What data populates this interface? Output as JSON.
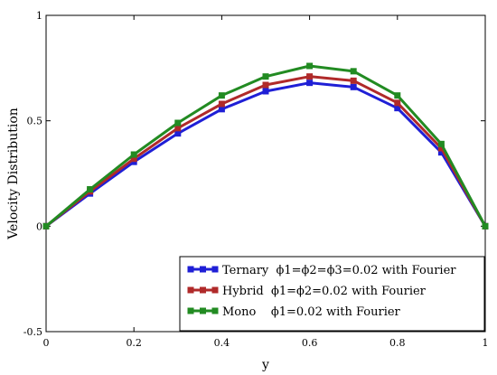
{
  "chart_data": {
    "type": "line",
    "title": "",
    "xlabel": "y",
    "ylabel": "Velocity  Distribution",
    "xlim": [
      0,
      1
    ],
    "ylim": [
      -0.5,
      1
    ],
    "x_ticks": [
      0,
      0.2,
      0.4,
      0.6,
      0.8,
      1
    ],
    "x_tick_labels": [
      "0",
      "0.2",
      "0.4",
      "0.6",
      "0.8",
      "1"
    ],
    "y_ticks": [
      -0.5,
      0,
      0.5,
      1
    ],
    "y_tick_labels": [
      "-0.5",
      "0",
      "0.5",
      "1"
    ],
    "grid": false,
    "legend_position": "bottom-right",
    "x": [
      0,
      0.1,
      0.2,
      0.3,
      0.4,
      0.5,
      0.6,
      0.7,
      0.8,
      0.9,
      1.0
    ],
    "series": [
      {
        "name": "Ternary  ϕ1=ϕ2=ϕ3=0.02 with Fourier",
        "color": "#1f1fd6",
        "marker": "square",
        "values": [
          0,
          0.155,
          0.305,
          0.44,
          0.555,
          0.64,
          0.68,
          0.66,
          0.56,
          0.35,
          0
        ]
      },
      {
        "name": "Hybrid  ϕ1=ϕ2=0.02 with Fourier",
        "color": "#b02a2a",
        "marker": "square",
        "values": [
          0,
          0.165,
          0.32,
          0.465,
          0.58,
          0.67,
          0.71,
          0.69,
          0.585,
          0.37,
          0
        ]
      },
      {
        "name": "Mono    ϕ1=0.02 with Fourier",
        "color": "#228b22",
        "marker": "square",
        "values": [
          0,
          0.175,
          0.34,
          0.49,
          0.62,
          0.71,
          0.76,
          0.735,
          0.62,
          0.39,
          0
        ]
      }
    ]
  }
}
